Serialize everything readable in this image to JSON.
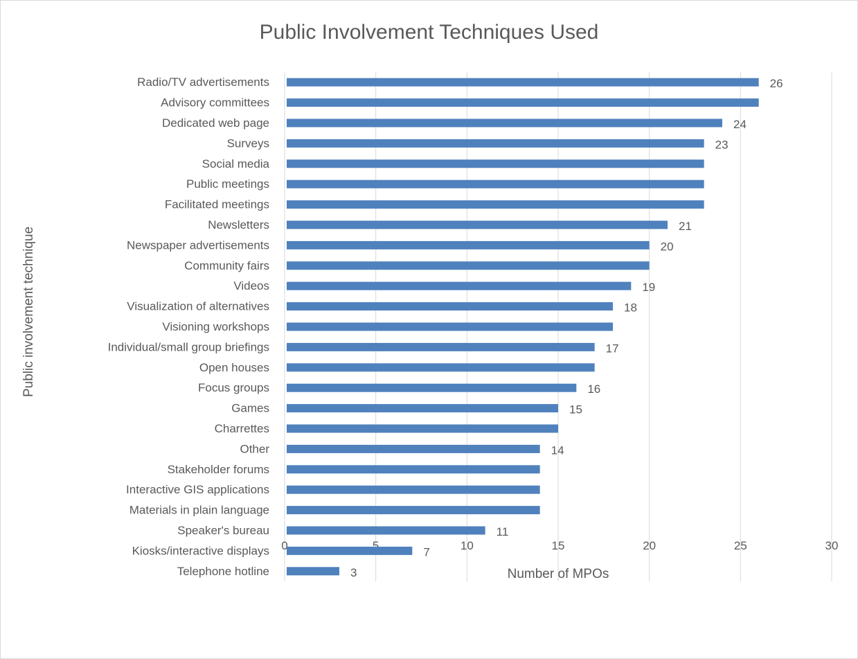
{
  "chart_data": {
    "type": "bar",
    "orientation": "horizontal",
    "title": "Public Involvement Techniques Used",
    "xlabel": "Number of MPOs",
    "ylabel": "Public involvement technique",
    "xlim": [
      0,
      30
    ],
    "x_ticks": [
      0,
      5,
      10,
      15,
      20,
      25,
      30
    ],
    "grid": "vertical",
    "bar_color": "#4f81bd",
    "categories": [
      "Radio/TV advertisements",
      "Advisory committees",
      "Dedicated web page",
      "Surveys",
      "Social media",
      "Public meetings",
      "Facilitated meetings",
      "Newsletters",
      "Newspaper advertisements",
      "Community fairs",
      "Videos",
      "Visualization of alternatives",
      "Visioning workshops",
      "Individual/small group briefings",
      "Open houses",
      "Focus groups",
      "Games",
      "Charrettes",
      "Other",
      "Stakeholder forums",
      "Interactive GIS applications",
      "Materials in plain language",
      "Speaker's bureau",
      "Kiosks/interactive displays",
      "Telephone hotline"
    ],
    "values": [
      26,
      26,
      24,
      23,
      23,
      23,
      23,
      21,
      20,
      20,
      19,
      18,
      18,
      17,
      17,
      16,
      15,
      15,
      14,
      14,
      14,
      14,
      11,
      7,
      3
    ],
    "data_labels": [
      "26",
      "",
      "24",
      "23",
      "",
      "",
      "",
      "21",
      "20",
      "",
      "19",
      "18",
      "",
      "17",
      "",
      "16",
      "15",
      "",
      "14",
      "",
      "",
      "",
      "11",
      "7",
      "3"
    ]
  }
}
